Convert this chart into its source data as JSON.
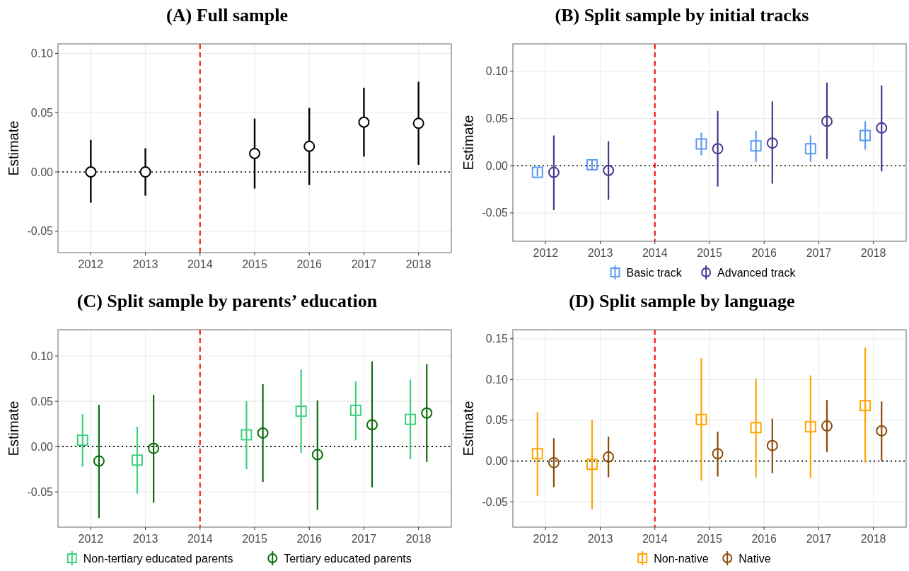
{
  "chart_data": [
    {
      "type": "scatter",
      "title": "(A) Full sample",
      "ylabel": "Estimate",
      "x": [
        2012,
        2013,
        2015,
        2016,
        2017,
        2018
      ],
      "xlim": [
        2011.4,
        2018.6
      ],
      "xticks": [
        2012,
        2013,
        2014,
        2015,
        2016,
        2017,
        2018
      ],
      "ylim": [
        -0.068,
        0.108
      ],
      "yticks": [
        {
          "value": -0.05,
          "label": "-0.05"
        },
        {
          "value": 0,
          "label": "0.00"
        },
        {
          "value": 0.05,
          "label": "0.05"
        },
        {
          "value": 0.1,
          "label": "0.10"
        }
      ],
      "grid": true,
      "legend": false,
      "ref_lines": [
        {
          "axis": "x",
          "value": 2014,
          "color": "#ff0000",
          "line_style": "dashed"
        },
        {
          "axis": "y",
          "value": 0,
          "color": "#000000",
          "line_style": "dotted"
        }
      ],
      "series": [
        {
          "color": "#000000",
          "marker": "circle",
          "values": [
            0.0,
            0.0,
            0.0156,
            0.0216,
            0.042,
            0.041
          ],
          "errors": [
            [
              -0.026,
              0.027
            ],
            [
              -0.02,
              0.02
            ],
            [
              -0.014,
              0.045
            ],
            [
              -0.011,
              0.054
            ],
            [
              0.013,
              0.071
            ],
            [
              0.006,
              0.076
            ]
          ]
        }
      ]
    },
    {
      "type": "scatter",
      "title": "(B) Split sample by initial tracks",
      "ylabel": "Estimate",
      "xlim": [
        2011.4,
        2018.6
      ],
      "xticks": [
        2012,
        2013,
        2014,
        2015,
        2016,
        2017,
        2018
      ],
      "ylim": [
        -0.08,
        0.129
      ],
      "yticks": [
        {
          "value": -0.05,
          "label": "-0.05"
        },
        {
          "value": 0,
          "label": "0.00"
        },
        {
          "value": 0.05,
          "label": "0.05"
        },
        {
          "value": 0.1,
          "label": "0.10"
        }
      ],
      "grid": true,
      "legend": "bottom",
      "ref_lines": [
        {
          "axis": "x",
          "value": 2014,
          "color": "#ff0000",
          "line_style": "dashed"
        },
        {
          "axis": "y",
          "value": 0,
          "color": "#000000",
          "line_style": "dotted"
        }
      ],
      "series": [
        {
          "name": "Basic track",
          "x": [
            2011.85,
            2012.85,
            2014.85,
            2015.85,
            2016.85,
            2017.85
          ],
          "color": "#5b9bef",
          "marker": "square",
          "values": [
            -0.007,
            0.001,
            0.023,
            0.021,
            0.018,
            0.032
          ],
          "errors": [
            [
              -0.011,
              -0.003
            ],
            [
              -0.004,
              0.006
            ],
            [
              0.011,
              0.035
            ],
            [
              0.004,
              0.037
            ],
            [
              0.004,
              0.032
            ],
            [
              0.017,
              0.047
            ]
          ]
        },
        {
          "name": "Advanced track",
          "x": [
            2012.15,
            2013.15,
            2015.15,
            2016.15,
            2017.15,
            2018.15
          ],
          "color": "#45398f",
          "marker": "circle",
          "values": [
            -0.007,
            -0.005,
            0.018,
            0.024,
            0.047,
            0.04
          ],
          "errors": [
            [
              -0.047,
              0.032
            ],
            [
              -0.036,
              0.026
            ],
            [
              -0.022,
              0.058
            ],
            [
              -0.019,
              0.068
            ],
            [
              0.007,
              0.088
            ],
            [
              -0.006,
              0.085
            ]
          ]
        }
      ]
    },
    {
      "type": "scatter",
      "title": "(C) Split sample by parents’ education",
      "ylabel": "Estimate",
      "xlim": [
        2011.4,
        2018.6
      ],
      "xticks": [
        2012,
        2013,
        2014,
        2015,
        2016,
        2017,
        2018
      ],
      "ylim": [
        -0.089,
        0.129
      ],
      "yticks": [
        {
          "value": -0.05,
          "label": "-0.05"
        },
        {
          "value": 0,
          "label": "0.00"
        },
        {
          "value": 0.05,
          "label": "0.05"
        },
        {
          "value": 0.1,
          "label": "0.10"
        }
      ],
      "grid": true,
      "legend": "bottom",
      "ref_lines": [
        {
          "axis": "x",
          "value": 2014,
          "color": "#ff0000",
          "line_style": "dashed"
        },
        {
          "axis": "y",
          "value": 0,
          "color": "#000000",
          "line_style": "dotted"
        }
      ],
      "series": [
        {
          "name": "Non-tertiary educated parents",
          "x": [
            2011.85,
            2012.85,
            2014.85,
            2015.85,
            2016.85,
            2017.85
          ],
          "color": "#3ecf7f",
          "marker": "square",
          "values": [
            0.007,
            -0.015,
            0.013,
            0.039,
            0.04,
            0.03
          ],
          "errors": [
            [
              -0.022,
              0.036
            ],
            [
              -0.052,
              0.022
            ],
            [
              -0.025,
              0.05
            ],
            [
              -0.007,
              0.085
            ],
            [
              0.007,
              0.072
            ],
            [
              -0.014,
              0.074
            ]
          ]
        },
        {
          "name": "Tertiary educated parents",
          "x": [
            2012.15,
            2013.15,
            2015.15,
            2016.15,
            2017.15,
            2018.15
          ],
          "color": "#0b6b0b",
          "marker": "circle",
          "values": [
            -0.016,
            -0.002,
            0.015,
            -0.009,
            0.024,
            0.037
          ],
          "errors": [
            [
              -0.079,
              0.046
            ],
            [
              -0.062,
              0.057
            ],
            [
              -0.039,
              0.069
            ],
            [
              -0.07,
              0.051
            ],
            [
              -0.045,
              0.094
            ],
            [
              -0.017,
              0.091
            ]
          ]
        }
      ]
    },
    {
      "type": "scatter",
      "title": "(D) Split sample by language",
      "ylabel": "Estimate",
      "xlim": [
        2011.4,
        2018.6
      ],
      "xticks": [
        2012,
        2013,
        2014,
        2015,
        2016,
        2017,
        2018
      ],
      "ylim": [
        -0.081,
        0.161
      ],
      "yticks": [
        {
          "value": -0.05,
          "label": "-0.05"
        },
        {
          "value": 0,
          "label": "0.00"
        },
        {
          "value": 0.05,
          "label": "0.05"
        },
        {
          "value": 0.1,
          "label": "0.10"
        },
        {
          "value": 0.15,
          "label": "0.15"
        }
      ],
      "grid": true,
      "legend": "bottom",
      "ref_lines": [
        {
          "axis": "x",
          "value": 2014,
          "color": "#ff0000",
          "line_style": "dashed"
        },
        {
          "axis": "y",
          "value": 0,
          "color": "#000000",
          "line_style": "dotted"
        }
      ],
      "series": [
        {
          "name": "Non-native",
          "x": [
            2011.85,
            2012.85,
            2014.85,
            2015.85,
            2016.85,
            2017.85
          ],
          "color": "#ffa500",
          "marker": "square",
          "values": [
            0.009,
            -0.004,
            0.051,
            0.041,
            0.042,
            0.068
          ],
          "errors": [
            [
              -0.043,
              0.06
            ],
            [
              -0.059,
              0.05
            ],
            [
              -0.024,
              0.126
            ],
            [
              -0.02,
              0.101
            ],
            [
              -0.021,
              0.105
            ],
            [
              -0.002,
              0.139
            ]
          ]
        },
        {
          "name": "Native",
          "x": [
            2012.15,
            2013.15,
            2015.15,
            2016.15,
            2017.15,
            2018.15
          ],
          "color": "#8b4a0b",
          "marker": "circle",
          "values": [
            -0.002,
            0.005,
            0.009,
            0.019,
            0.043,
            0.037
          ],
          "errors": [
            [
              -0.032,
              0.028
            ],
            [
              -0.02,
              0.03
            ],
            [
              -0.019,
              0.036
            ],
            [
              -0.015,
              0.052
            ],
            [
              0.011,
              0.075
            ],
            [
              0.0,
              0.073
            ]
          ]
        }
      ]
    }
  ]
}
